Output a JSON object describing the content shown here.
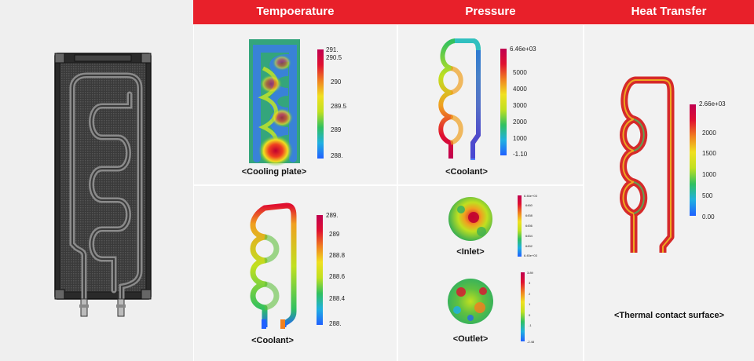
{
  "colors": {
    "header_red": "#e8202a",
    "colormap": [
      "#2060ff",
      "#20b0e0",
      "#30c060",
      "#c0e020",
      "#f0e020",
      "#f08020",
      "#e01030",
      "#c00050"
    ]
  },
  "header": {
    "temperature": "Tempoerature",
    "pressure": "Pressure",
    "heat_transfer": "Heat Transfer"
  },
  "panels": {
    "cooling_plate": {
      "caption": "<Cooling plate>",
      "ticks": [
        "291.",
        "290.5",
        "290",
        "289.5",
        "289",
        "288."
      ]
    },
    "temp_coolant": {
      "caption": "<Coolant>",
      "ticks": [
        "289.",
        "289",
        "288.8",
        "288.6",
        "288.4",
        "288."
      ]
    },
    "pressure_coolant": {
      "caption": "<Coolant>",
      "ticks": [
        "6.46e+03",
        "5000",
        "4000",
        "3000",
        "2000",
        "1000",
        "-1.10"
      ]
    },
    "inlet": {
      "caption": "<Inlet>",
      "ticks": [
        "6.46e+03",
        "6460",
        "6458",
        "6456",
        "6454",
        "6452",
        "6.45e+03"
      ]
    },
    "outlet": {
      "caption": "<Outlet>",
      "ticks": [
        "3.89",
        "3",
        "2",
        "1",
        "0",
        "-1",
        "-2.48"
      ]
    },
    "heat_transfer": {
      "caption": "<Thermal contact surface>",
      "ticks": [
        "2.66e+03",
        "2000",
        "1500",
        "1000",
        "500",
        "0.00"
      ]
    }
  }
}
